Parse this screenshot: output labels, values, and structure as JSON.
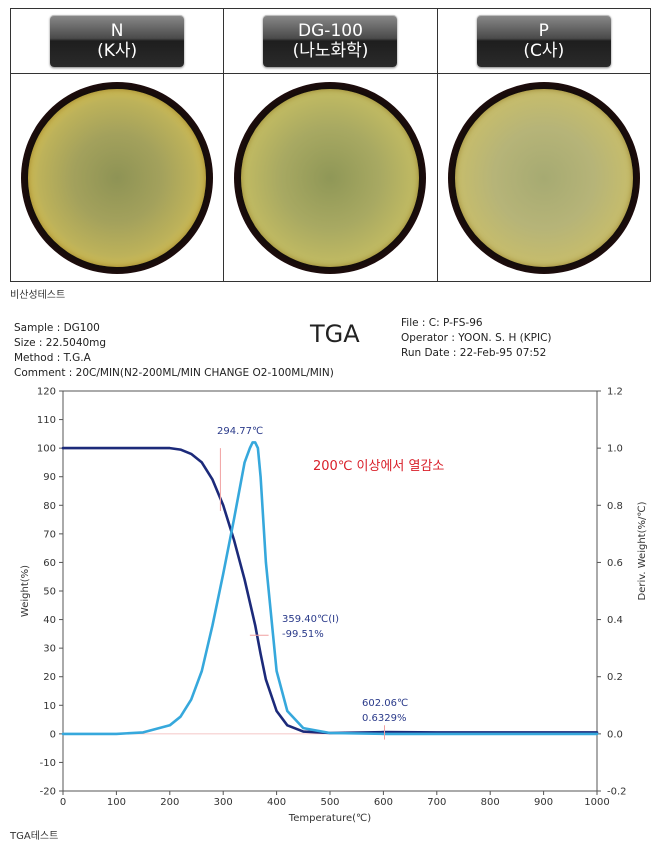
{
  "samples": [
    {
      "line1": "N",
      "line2": "(K사)"
    },
    {
      "line1": "DG-100",
      "line2": "(나노화학)"
    },
    {
      "line1": "P",
      "line2": "(C사)"
    }
  ],
  "caption_top": "비산성테스트",
  "caption_bottom": "TGA테스트",
  "info_left": {
    "sample": "Sample : DG100",
    "size": "Size : 22.5040mg",
    "method": "Method : T.G.A",
    "comment": "Comment : 20C/MIN(N2-200ML/MIN CHANGE O2-100ML/MIN)"
  },
  "info_right": {
    "file": "File : C: P-FS-96",
    "operator": "Operator : YOON. S. H (KPIC)",
    "run_date": "Run Date : 22-Feb-95 07:52"
  },
  "chart_data": {
    "type": "line",
    "title": "TGA",
    "xlabel": "Temperature(℃)",
    "ylabel": "Weight(%)",
    "y2label": "Deriv. Weight(%/℃)",
    "xlim": [
      0,
      1000
    ],
    "ylim": [
      -20,
      120
    ],
    "y2lim": [
      -0.2,
      1.2
    ],
    "x_ticks": [
      0,
      100,
      200,
      300,
      400,
      500,
      600,
      700,
      800,
      900,
      1000
    ],
    "y_ticks": [
      -20,
      -10,
      0,
      10,
      20,
      30,
      40,
      50,
      60,
      70,
      80,
      90,
      100,
      110,
      120
    ],
    "y2_ticks": [
      "-0.2",
      "0.0",
      "0.2",
      "0.4",
      "0.6",
      "0.8",
      "1.0",
      "1.2"
    ],
    "series": [
      {
        "axis": "left",
        "color": "#1c2a7a",
        "x": [
          0,
          100,
          150,
          200,
          220,
          240,
          260,
          280,
          300,
          320,
          340,
          360,
          370,
          380,
          400,
          420,
          450,
          500,
          600,
          700,
          1000
        ],
        "values": [
          100,
          100,
          100,
          100,
          99.5,
          98,
          95,
          89,
          80,
          68,
          54,
          38,
          28,
          19,
          8,
          3,
          0.8,
          0.3,
          0.63,
          0.5,
          0.5
        ]
      },
      {
        "axis": "right",
        "color": "#36a8dc",
        "x": [
          0,
          100,
          150,
          200,
          220,
          240,
          260,
          280,
          300,
          320,
          340,
          350,
          355,
          360,
          365,
          370,
          380,
          400,
          420,
          450,
          500,
          600,
          700,
          1000
        ],
        "values": [
          0,
          0,
          0.005,
          0.03,
          0.06,
          0.12,
          0.22,
          0.38,
          0.56,
          0.75,
          0.95,
          1.0,
          1.02,
          1.02,
          1.0,
          0.9,
          0.6,
          0.22,
          0.08,
          0.02,
          0.003,
          0,
          0,
          0
        ]
      }
    ],
    "annotations": [
      {
        "text": "294.77℃",
        "x": 294.77
      },
      {
        "text": "359.40℃(I)",
        "x": 359.4
      },
      {
        "text": "-99.51%",
        "x": 359.4
      },
      {
        "text": "602.06℃",
        "x": 602.06
      },
      {
        "text": "0.6329%",
        "x": 602.06
      },
      {
        "text": "200℃ 이상에서 열감소",
        "x": 470
      }
    ]
  },
  "colors": {
    "weight_line": "#1c2a7a",
    "deriv_line": "#36a8dc",
    "note_text": "#d9202a",
    "annotation_text": "#2a3a8a",
    "marker": "#f0a0a0"
  }
}
